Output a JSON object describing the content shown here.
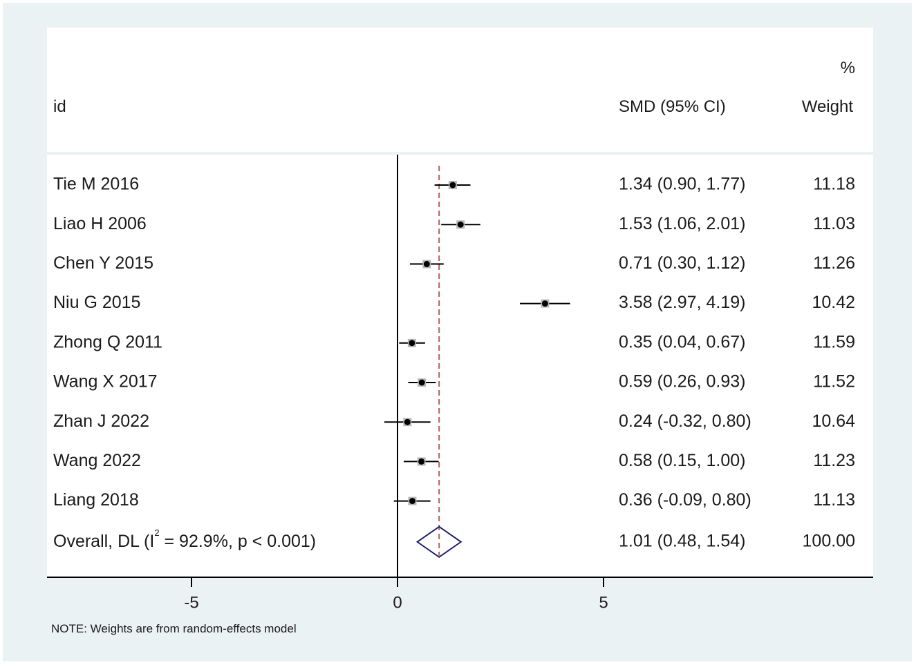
{
  "header": {
    "id_label": "id",
    "pct_label": "%",
    "smd_label": "SMD (95% CI)",
    "weight_label": "Weight"
  },
  "note": "NOTE: Weights are from random-effects model",
  "chart_data": {
    "type": "forest",
    "studies": [
      {
        "id": "Tie M 2016",
        "smd": 1.34,
        "lo": 0.9,
        "hi": 1.77,
        "ci_text": "1.34 (0.90, 1.77)",
        "weight": "11.18"
      },
      {
        "id": "Liao H 2006",
        "smd": 1.53,
        "lo": 1.06,
        "hi": 2.01,
        "ci_text": "1.53 (1.06, 2.01)",
        "weight": "11.03"
      },
      {
        "id": "Chen Y 2015",
        "smd": 0.71,
        "lo": 0.3,
        "hi": 1.12,
        "ci_text": "0.71 (0.30, 1.12)",
        "weight": "11.26"
      },
      {
        "id": "Niu G 2015",
        "smd": 3.58,
        "lo": 2.97,
        "hi": 4.19,
        "ci_text": "3.58 (2.97, 4.19)",
        "weight": "10.42"
      },
      {
        "id": "Zhong Q 2011",
        "smd": 0.35,
        "lo": 0.04,
        "hi": 0.67,
        "ci_text": "0.35 (0.04, 0.67)",
        "weight": "11.59"
      },
      {
        "id": "Wang X 2017",
        "smd": 0.59,
        "lo": 0.26,
        "hi": 0.93,
        "ci_text": "0.59 (0.26, 0.93)",
        "weight": "11.52"
      },
      {
        "id": "Zhan J 2022",
        "smd": 0.24,
        "lo": -0.32,
        "hi": 0.8,
        "ci_text": "0.24 (-0.32, 0.80)",
        "weight": "10.64"
      },
      {
        "id": "Wang 2022",
        "smd": 0.58,
        "lo": 0.15,
        "hi": 1.0,
        "ci_text": "0.58 (0.15, 1.00)",
        "weight": "11.23"
      },
      {
        "id": "Liang 2018",
        "smd": 0.36,
        "lo": -0.09,
        "hi": 0.8,
        "ci_text": "0.36 (-0.09, 0.80)",
        "weight": "11.13"
      }
    ],
    "overall": {
      "label_prefix": "Overall, DL (I",
      "label_sup": "2",
      "label_suffix": " = 92.9%, p < 0.001)",
      "smd": 1.01,
      "lo": 0.48,
      "hi": 1.54,
      "ci_text": "1.01 (0.48, 1.54)",
      "weight": "100.00"
    },
    "xticks": [
      -5,
      0,
      5
    ],
    "xtick_labels": [
      "-5",
      "0",
      "5"
    ],
    "colors": {
      "marker": "#000000",
      "ci_line": "#000000",
      "diamond": "#1f1f6e",
      "reference_line": "#b06060"
    }
  }
}
